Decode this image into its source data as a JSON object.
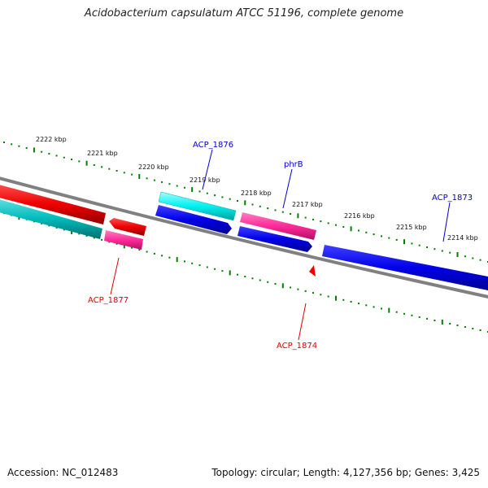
{
  "title": "Acidobacterium capsulatum ATCC 51196, complete genome",
  "accession": "Accession: NC_012483",
  "topology": "Topology: circular; Length: 4,127,356 bp; Genes: 3,425",
  "colors": {
    "forward_cds": "#0000ee",
    "reverse_cds": "#ee0000",
    "forward_rna": "#00e5e5",
    "reverse_rna": "#00b8b8",
    "pink": "#ff2a9a",
    "backbone": "#808080",
    "ticks": "#008000",
    "label_blue": "#0000cc",
    "label_red": "#dd0000"
  },
  "scale": {
    "unit": "kbp",
    "ticks": [
      {
        "label": "2222 kbp"
      },
      {
        "label": "2221 kbp"
      },
      {
        "label": "2220 kbp"
      },
      {
        "label": "2219 kbp"
      },
      {
        "label": "2218 kbp"
      },
      {
        "label": "2217 kbp"
      },
      {
        "label": "2216 kbp"
      },
      {
        "label": "2215 kbp"
      },
      {
        "label": "2214 kbp"
      }
    ]
  },
  "gene_labels": [
    {
      "text": "ACP_1876",
      "color": "blue"
    },
    {
      "text": "phrB",
      "color": "blue"
    },
    {
      "text": "ACP_1873",
      "color": "blue"
    },
    {
      "text": "ACP_1877",
      "color": "red"
    },
    {
      "text": "ACP_1874",
      "color": "red"
    }
  ]
}
